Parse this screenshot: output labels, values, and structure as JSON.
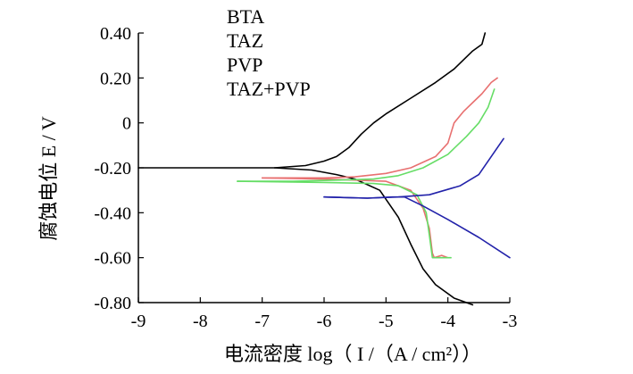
{
  "chart_data": {
    "type": "line",
    "xlabel": "电流密度 log（ I /（A / cm²））",
    "ylabel": "腐蚀电位 E / V",
    "xlim": [
      -9,
      -3
    ],
    "ylim": [
      -0.8,
      0.4
    ],
    "x_ticks": [
      "-9",
      "-8",
      "-7",
      "-6",
      "-5",
      "-4",
      "-3"
    ],
    "y_ticks": [
      "0.40",
      "0.20",
      "0",
      "-0.20",
      "-0.40",
      "-0.60",
      "-0.80"
    ],
    "legend_position": "top-center",
    "legend_has_markers": false,
    "series": [
      {
        "name": "BTA",
        "color": "#000000",
        "anodic": [
          [
            -9.0,
            -0.2
          ],
          [
            -6.8,
            -0.2
          ],
          [
            -6.3,
            -0.19
          ],
          [
            -6.0,
            -0.17
          ],
          [
            -5.8,
            -0.15
          ],
          [
            -5.6,
            -0.11
          ],
          [
            -5.4,
            -0.05
          ],
          [
            -5.2,
            0.0
          ],
          [
            -5.0,
            0.04
          ],
          [
            -4.6,
            0.11
          ],
          [
            -4.2,
            0.18
          ],
          [
            -3.9,
            0.24
          ],
          [
            -3.6,
            0.32
          ],
          [
            -3.45,
            0.35
          ],
          [
            -3.4,
            0.4
          ]
        ],
        "cathodic": [
          [
            -6.8,
            -0.2
          ],
          [
            -6.2,
            -0.21
          ],
          [
            -5.8,
            -0.23
          ],
          [
            -5.5,
            -0.25
          ],
          [
            -5.1,
            -0.3
          ],
          [
            -4.8,
            -0.42
          ],
          [
            -4.6,
            -0.54
          ],
          [
            -4.4,
            -0.65
          ],
          [
            -4.2,
            -0.72
          ],
          [
            -3.9,
            -0.78
          ],
          [
            -3.6,
            -0.81
          ]
        ]
      },
      {
        "name": "TAZ",
        "color": "#e87070",
        "anodic": [
          [
            -7.0,
            -0.245
          ],
          [
            -6.0,
            -0.245
          ],
          [
            -5.5,
            -0.24
          ],
          [
            -5.0,
            -0.225
          ],
          [
            -4.6,
            -0.2
          ],
          [
            -4.2,
            -0.15
          ],
          [
            -4.0,
            -0.09
          ],
          [
            -3.9,
            0.0
          ],
          [
            -3.75,
            0.05
          ],
          [
            -3.6,
            0.09
          ],
          [
            -3.45,
            0.13
          ],
          [
            -3.3,
            0.18
          ],
          [
            -3.2,
            0.2
          ]
        ],
        "cathodic": [
          [
            -7.0,
            -0.245
          ],
          [
            -6.0,
            -0.25
          ],
          [
            -5.0,
            -0.26
          ],
          [
            -4.6,
            -0.3
          ],
          [
            -4.4,
            -0.38
          ],
          [
            -4.3,
            -0.47
          ],
          [
            -4.25,
            -0.58
          ],
          [
            -4.22,
            -0.6
          ],
          [
            -4.1,
            -0.59
          ],
          [
            -4.0,
            -0.6
          ]
        ]
      },
      {
        "name": "PVP",
        "color": "#66dd66",
        "anodic": [
          [
            -7.4,
            -0.26
          ],
          [
            -6.5,
            -0.26
          ],
          [
            -5.8,
            -0.255
          ],
          [
            -5.2,
            -0.25
          ],
          [
            -4.8,
            -0.235
          ],
          [
            -4.4,
            -0.2
          ],
          [
            -4.0,
            -0.14
          ],
          [
            -3.7,
            -0.06
          ],
          [
            -3.5,
            0.0
          ],
          [
            -3.35,
            0.07
          ],
          [
            -3.25,
            0.15
          ]
        ],
        "cathodic": [
          [
            -7.4,
            -0.26
          ],
          [
            -6.0,
            -0.265
          ],
          [
            -5.2,
            -0.27
          ],
          [
            -4.8,
            -0.28
          ],
          [
            -4.5,
            -0.32
          ],
          [
            -4.35,
            -0.4
          ],
          [
            -4.3,
            -0.5
          ],
          [
            -4.25,
            -0.6
          ],
          [
            -4.1,
            -0.6
          ],
          [
            -3.95,
            -0.6
          ]
        ]
      },
      {
        "name": "TAZ+PVP",
        "color": "#2222aa",
        "anodic": [
          [
            -6.0,
            -0.33
          ],
          [
            -5.3,
            -0.335
          ],
          [
            -4.8,
            -0.33
          ],
          [
            -4.3,
            -0.32
          ],
          [
            -3.8,
            -0.28
          ],
          [
            -3.5,
            -0.23
          ],
          [
            -3.3,
            -0.15
          ],
          [
            -3.1,
            -0.07
          ]
        ],
        "cathodic": [
          [
            -6.0,
            -0.33
          ],
          [
            -5.3,
            -0.335
          ],
          [
            -4.9,
            -0.33
          ],
          [
            -4.7,
            -0.33
          ],
          [
            -4.4,
            -0.37
          ],
          [
            -4.0,
            -0.43
          ],
          [
            -3.5,
            -0.51
          ],
          [
            -3.0,
            -0.6
          ]
        ]
      }
    ]
  }
}
